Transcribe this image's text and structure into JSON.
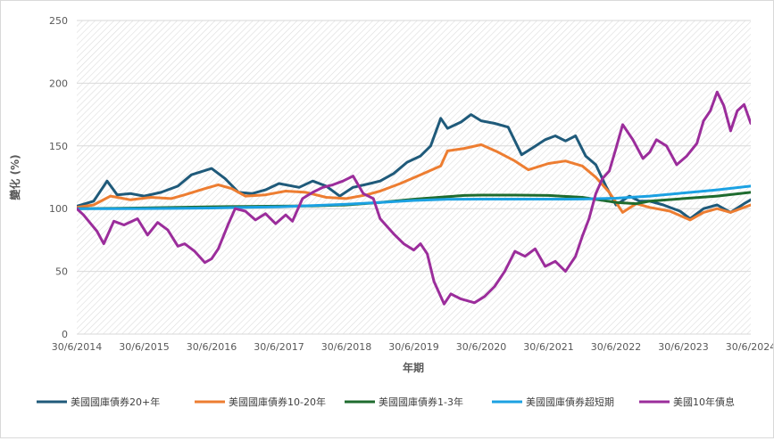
{
  "chart_data": {
    "type": "line",
    "title": "",
    "xlabel": "年期",
    "ylabel": "變化 (%)",
    "ylim": [
      0,
      250
    ],
    "yticks": [
      0,
      50,
      100,
      150,
      200,
      250
    ],
    "x_tick_labels": [
      "30/6/2014",
      "30/6/2015",
      "30/6/2016",
      "30/6/2017",
      "30/6/2018",
      "30/6/2019",
      "30/6/2020",
      "30/6/2021",
      "30/6/2022",
      "30/6/2023",
      "30/6/2024"
    ],
    "xlim": [
      2014.5,
      2024.5
    ],
    "grid": "horizontal",
    "legend_position": "bottom",
    "series": [
      {
        "name": "美國國庫債券20+年",
        "color": "#1f5a7a",
        "x": [
          2014.5,
          2014.75,
          2014.95,
          2015.1,
          2015.3,
          2015.5,
          2015.75,
          2016.0,
          2016.2,
          2016.5,
          2016.7,
          2016.9,
          2017.1,
          2017.3,
          2017.5,
          2017.8,
          2018.0,
          2018.2,
          2018.4,
          2018.6,
          2018.85,
          2019.0,
          2019.2,
          2019.4,
          2019.6,
          2019.75,
          2019.9,
          2020.0,
          2020.2,
          2020.35,
          2020.5,
          2020.7,
          2020.9,
          2021.1,
          2021.25,
          2021.45,
          2021.6,
          2021.75,
          2021.9,
          2022.05,
          2022.2,
          2022.35,
          2022.5,
          2022.7,
          2022.85,
          2023.0,
          2023.2,
          2023.45,
          2023.6,
          2023.8,
          2024.0,
          2024.2,
          2024.4,
          2024.5
        ],
        "values": [
          102,
          106,
          122,
          111,
          112,
          110,
          113,
          118,
          127,
          132,
          124,
          113,
          112,
          115,
          120,
          117,
          122,
          118,
          110,
          117,
          120,
          122,
          128,
          137,
          142,
          150,
          172,
          164,
          169,
          175,
          170,
          168,
          165,
          143,
          148,
          155,
          158,
          154,
          158,
          142,
          135,
          118,
          103,
          110,
          106,
          106,
          103,
          98,
          92,
          100,
          103,
          97,
          104,
          107
        ]
      },
      {
        "name": "美國國庫債券10-20年",
        "color": "#ed7d31",
        "x": [
          2014.5,
          2014.75,
          2015.0,
          2015.3,
          2015.6,
          2015.9,
          2016.1,
          2016.4,
          2016.6,
          2016.8,
          2017.0,
          2017.3,
          2017.6,
          2017.9,
          2018.2,
          2018.5,
          2018.8,
          2019.0,
          2019.3,
          2019.6,
          2019.9,
          2020.0,
          2020.25,
          2020.5,
          2020.75,
          2021.0,
          2021.2,
          2021.5,
          2021.75,
          2022.0,
          2022.2,
          2022.4,
          2022.6,
          2022.8,
          2023.0,
          2023.3,
          2023.6,
          2023.8,
          2024.0,
          2024.2,
          2024.5
        ],
        "values": [
          101,
          103,
          110,
          107,
          109,
          108,
          111,
          116,
          119,
          116,
          110,
          111,
          114,
          113,
          109,
          108,
          111,
          114,
          120,
          127,
          134,
          146,
          148,
          151,
          145,
          138,
          131,
          136,
          138,
          134,
          125,
          113,
          97,
          104,
          101,
          98,
          91,
          97,
          100,
          97,
          103
        ]
      },
      {
        "name": "美國國庫債券1-3年",
        "color": "#1e6b2e",
        "x": [
          2014.5,
          2015.0,
          2015.5,
          2016.0,
          2016.5,
          2017.0,
          2017.5,
          2018.0,
          2018.5,
          2019.0,
          2019.5,
          2020.0,
          2020.25,
          2020.5,
          2021.0,
          2021.5,
          2022.0,
          2022.5,
          2022.8,
          2023.0,
          2023.5,
          2024.0,
          2024.5
        ],
        "values": [
          100,
          100.2,
          100.6,
          101,
          101.5,
          101.8,
          102,
          102.2,
          103,
          105,
          107.5,
          109.5,
          110.5,
          110.8,
          110.8,
          110.5,
          109,
          105,
          104,
          106,
          108,
          110,
          113
        ]
      },
      {
        "name": "美國國庫債券超短期",
        "color": "#1ba1e2",
        "x": [
          2014.5,
          2015.0,
          2015.5,
          2016.0,
          2016.5,
          2017.0,
          2017.5,
          2018.0,
          2018.5,
          2019.0,
          2019.5,
          2020.0,
          2020.5,
          2021.0,
          2021.5,
          2022.0,
          2022.5,
          2023.0,
          2023.5,
          2024.0,
          2024.5
        ],
        "values": [
          100,
          100,
          100.1,
          100.2,
          100.5,
          101,
          101.5,
          102.5,
          103.5,
          105,
          106.5,
          107.5,
          107.6,
          107.6,
          107.6,
          107.7,
          108.3,
          110,
          112.5,
          115,
          118
        ]
      },
      {
        "name": "美國10年債息",
        "color": "#9b2d9b",
        "x": [
          2014.5,
          2014.6,
          2014.8,
          2014.9,
          2015.05,
          2015.2,
          2015.4,
          2015.55,
          2015.7,
          2015.85,
          2016.0,
          2016.1,
          2016.25,
          2016.4,
          2016.5,
          2016.6,
          2016.75,
          2016.85,
          2017.0,
          2017.15,
          2017.3,
          2017.45,
          2017.6,
          2017.7,
          2017.85,
          2018.0,
          2018.15,
          2018.3,
          2018.45,
          2018.6,
          2018.75,
          2018.9,
          2019.0,
          2019.2,
          2019.35,
          2019.5,
          2019.6,
          2019.7,
          2019.8,
          2019.95,
          2020.05,
          2020.2,
          2020.4,
          2020.55,
          2020.7,
          2020.85,
          2021.0,
          2021.15,
          2021.3,
          2021.45,
          2021.6,
          2021.75,
          2021.9,
          2022.0,
          2022.1,
          2022.2,
          2022.3,
          2022.4,
          2022.5,
          2022.6,
          2022.75,
          2022.9,
          2023.0,
          2023.1,
          2023.25,
          2023.4,
          2023.55,
          2023.7,
          2023.8,
          2023.9,
          2024.0,
          2024.1,
          2024.2,
          2024.3,
          2024.4,
          2024.5
        ],
        "values": [
          100,
          95,
          82,
          72,
          90,
          87,
          92,
          79,
          89,
          83,
          70,
          72,
          66,
          57,
          60,
          68,
          88,
          100,
          98,
          91,
          96,
          88,
          95,
          90,
          108,
          113,
          117,
          119,
          122,
          126,
          112,
          108,
          92,
          80,
          72,
          67,
          72,
          64,
          42,
          24,
          32,
          28,
          25,
          30,
          38,
          50,
          66,
          62,
          68,
          54,
          58,
          50,
          62,
          78,
          92,
          112,
          124,
          130,
          148,
          167,
          155,
          140,
          145,
          155,
          150,
          135,
          142,
          152,
          170,
          178,
          193,
          182,
          162,
          178,
          183,
          168
        ]
      }
    ]
  }
}
